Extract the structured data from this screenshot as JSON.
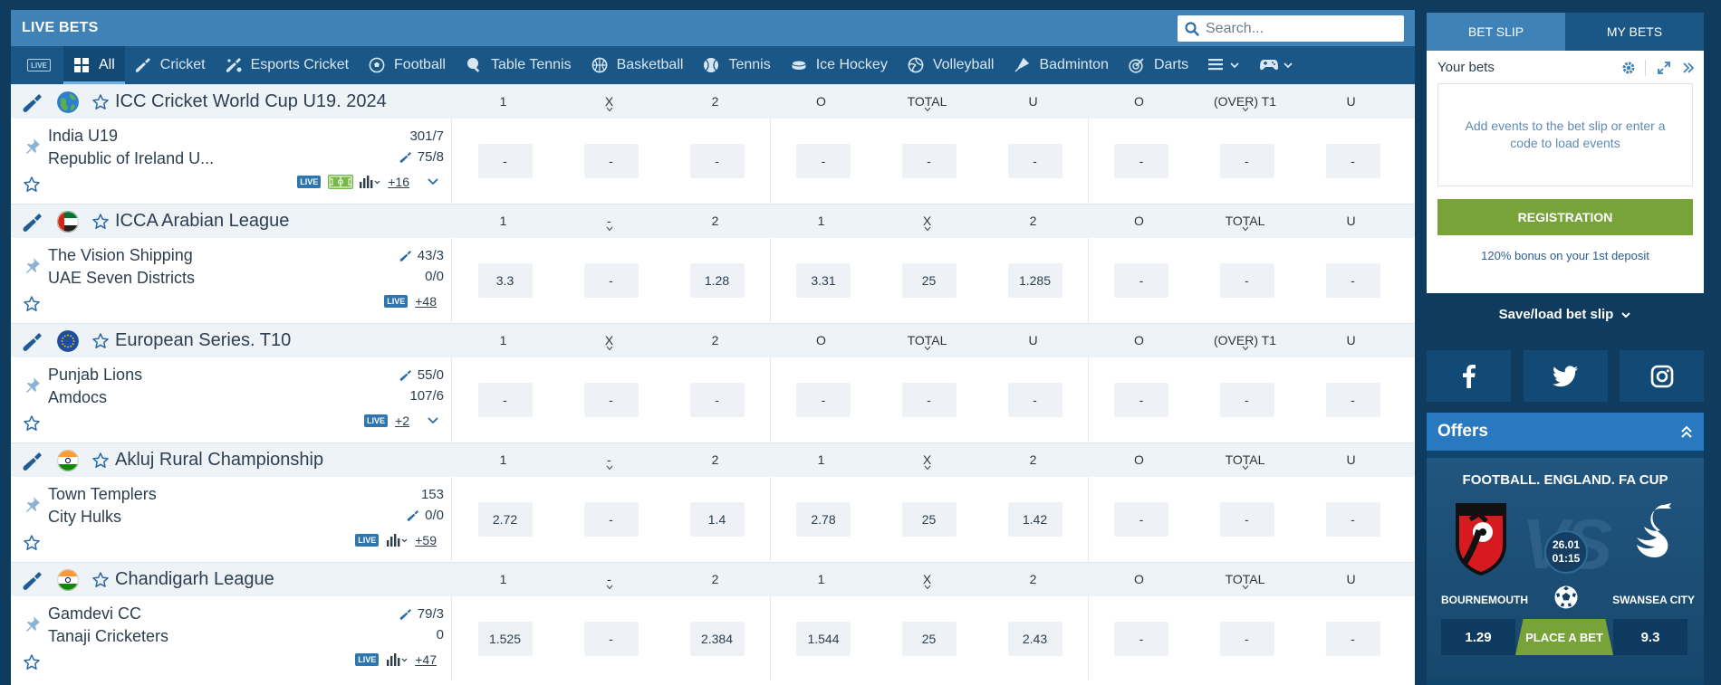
{
  "header": {
    "title": "LIVE BETS",
    "search_placeholder": "Search..."
  },
  "nav": {
    "live_badge": "LIVE",
    "items": [
      {
        "label": "All",
        "icon": "grid-icon",
        "active": true
      },
      {
        "label": "Cricket",
        "icon": "cricket-bat-icon"
      },
      {
        "label": "Esports Cricket",
        "icon": "esports-cricket-icon"
      },
      {
        "label": "Football",
        "icon": "football-icon"
      },
      {
        "label": "Table Tennis",
        "icon": "table-tennis-icon"
      },
      {
        "label": "Basketball",
        "icon": "basketball-icon"
      },
      {
        "label": "Tennis",
        "icon": "tennis-icon"
      },
      {
        "label": "Ice Hockey",
        "icon": "ice-hockey-icon"
      },
      {
        "label": "Volleyball",
        "icon": "volleyball-icon"
      },
      {
        "label": "Badminton",
        "icon": "badminton-icon"
      },
      {
        "label": "Darts",
        "icon": "darts-icon"
      }
    ]
  },
  "leagues": [
    {
      "name": "ICC Cricket World Cup U19. 2024",
      "flag": "world",
      "columns": [
        "1",
        "X",
        "2",
        "O",
        "TOTAL",
        "U",
        "O",
        "(OVER) T1",
        "U"
      ],
      "team1": "India U19",
      "team2": "Republic of Ireland U...",
      "score1": "301/7",
      "score2": "75/8",
      "batting": 2,
      "odds": [
        "-",
        "-",
        "-",
        "-",
        "-",
        "-",
        "-",
        "-",
        "-"
      ],
      "more": "+16",
      "live_label": "LIVE"
    },
    {
      "name": "ICCA Arabian League",
      "flag": "uae",
      "columns": [
        "1",
        "-",
        "2",
        "1",
        "X",
        "2",
        "O",
        "TOTAL",
        "U"
      ],
      "team1": "The Vision Shipping",
      "team2": "UAE Seven Districts",
      "score1": "43/3",
      "score2": "0/0",
      "batting": 1,
      "odds": [
        "3.3",
        "-",
        "1.28",
        "3.31",
        "25",
        "1.285",
        "-",
        "-",
        "-"
      ],
      "more": "+48",
      "live_label": "LIVE"
    },
    {
      "name": "European Series. T10",
      "flag": "eu",
      "columns": [
        "1",
        "X",
        "2",
        "O",
        "TOTAL",
        "U",
        "O",
        "(OVER) T1",
        "U"
      ],
      "team1": "Punjab Lions",
      "team2": "Amdocs",
      "score1": "55/0",
      "score2": "107/6",
      "batting": 1,
      "odds": [
        "-",
        "-",
        "-",
        "-",
        "-",
        "-",
        "-",
        "-",
        "-"
      ],
      "more": "+2",
      "live_label": "LIVE"
    },
    {
      "name": "Akluj Rural Championship",
      "flag": "india",
      "columns": [
        "1",
        "-",
        "2",
        "1",
        "X",
        "2",
        "O",
        "TOTAL",
        "U"
      ],
      "team1": "Town Templers",
      "team2": "City Hulks",
      "score1": "153",
      "score2": "0/0",
      "batting": 2,
      "odds": [
        "2.72",
        "-",
        "1.4",
        "2.78",
        "25",
        "1.42",
        "-",
        "-",
        "-"
      ],
      "more": "+59",
      "live_label": "LIVE"
    },
    {
      "name": "Chandigarh League",
      "flag": "india",
      "columns": [
        "1",
        "-",
        "2",
        "1",
        "X",
        "2",
        "O",
        "TOTAL",
        "U"
      ],
      "team1": "Gamdevi CC",
      "team2": "Tanaji Cricketers",
      "score1": "79/3",
      "score2": "0",
      "batting": 1,
      "odds": [
        "1.525",
        "-",
        "2.384",
        "1.544",
        "25",
        "2.43",
        "-",
        "-",
        "-"
      ],
      "more": "+47",
      "live_label": "LIVE"
    }
  ],
  "betslip": {
    "tab_betslip": "BET SLIP",
    "tab_mybets": "MY BETS",
    "your_bets": "Your bets",
    "empty_text": "Add events to the bet slip or enter a code to load events",
    "register": "REGISTRATION",
    "bonus": "120% bonus on your 1st deposit"
  },
  "save_load": "Save/load bet slip",
  "offers": {
    "title": "Offers",
    "event_title": "FOOTBALL. ENGLAND. FA CUP",
    "vs": "VS",
    "date": "26.01",
    "time": "01:15",
    "team_left": "BOURNEMOUTH",
    "team_right": "SWANSEA CITY",
    "odd_left": "1.29",
    "odd_right": "9.3",
    "place_bet": "PLACE A BET"
  },
  "colors": {
    "header_blue": "#3e82b8",
    "nav_blue": "#1a5686",
    "background": "#0e3b5e",
    "green": "#77a339"
  }
}
